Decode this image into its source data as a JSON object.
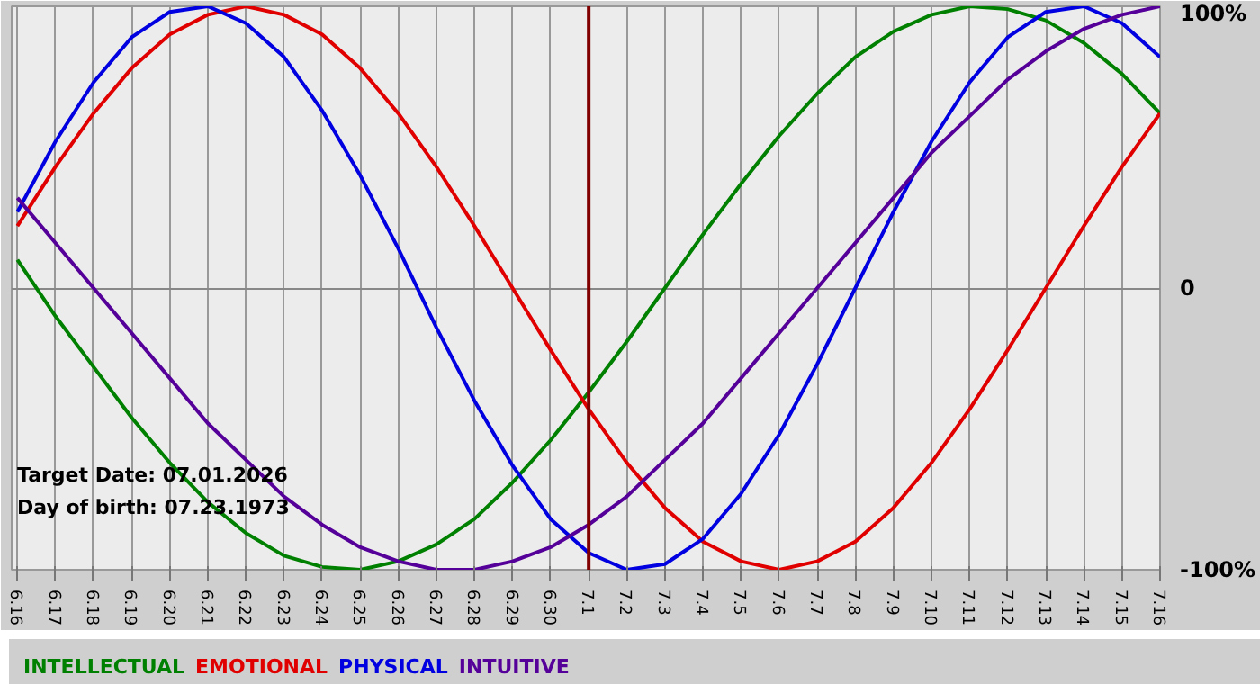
{
  "chart_data": {
    "type": "line",
    "categories": [
      "6.16",
      "6.17",
      "6.18",
      "6.19",
      "6.20",
      "6.21",
      "6.22",
      "6.23",
      "6.24",
      "6.25",
      "6.26",
      "6.27",
      "6.28",
      "6.29",
      "6.30",
      "7.1",
      "7.2",
      "7.3",
      "7.4",
      "7.5",
      "7.6",
      "7.7",
      "7.8",
      "7.9",
      "7.10",
      "7.11",
      "7.12",
      "7.13",
      "7.14",
      "7.15",
      "7.16"
    ],
    "series": [
      {
        "name": "INTELLECTUAL",
        "color": "#008000",
        "values": [
          10,
          -10,
          -28,
          -46,
          -62,
          -76,
          -87,
          -95,
          -99,
          -100,
          -97,
          -91,
          -82,
          -69,
          -54,
          -37,
          -19,
          0,
          19,
          37,
          54,
          69,
          82,
          91,
          97,
          100,
          99,
          95,
          87,
          76,
          62
        ]
      },
      {
        "name": "EMOTIONAL",
        "color": "#e00000",
        "values": [
          22,
          43,
          62,
          78,
          90,
          97,
          100,
          97,
          90,
          78,
          62,
          43,
          22,
          0,
          -22,
          -43,
          -62,
          -78,
          -90,
          -97,
          -100,
          -97,
          -90,
          -78,
          -62,
          -43,
          -22,
          0,
          22,
          43,
          62
        ]
      },
      {
        "name": "PHYSICAL",
        "color": "#0000e0",
        "values": [
          27,
          52,
          73,
          89,
          98,
          100,
          94,
          82,
          63,
          40,
          14,
          -14,
          -40,
          -63,
          -82,
          -94,
          -100,
          -98,
          -89,
          -73,
          -52,
          -27,
          0,
          27,
          52,
          73,
          89,
          98,
          100,
          94,
          82
        ]
      },
      {
        "name": "INTUITIVE",
        "color": "#550099",
        "values": [
          32,
          16,
          0,
          -16,
          -32,
          -48,
          -61,
          -74,
          -84,
          -92,
          -97,
          -100,
          -100,
          -97,
          -92,
          -84,
          -74,
          -61,
          -48,
          -32,
          -16,
          0,
          16,
          32,
          48,
          61,
          74,
          84,
          92,
          97,
          100
        ]
      }
    ],
    "ylim": [
      -100,
      100
    ],
    "yticks": [
      {
        "value": -100,
        "label": "-100%"
      },
      0,
      {
        "value": 100,
        "label": "100%"
      }
    ],
    "grid": true,
    "ref_lines": [
      {
        "axis": "x",
        "value": "7.1",
        "color": "#800000"
      }
    ],
    "annotations": [
      "Target Date: 07.01.2026",
      "Day of birth: 07.23.1973"
    ]
  }
}
